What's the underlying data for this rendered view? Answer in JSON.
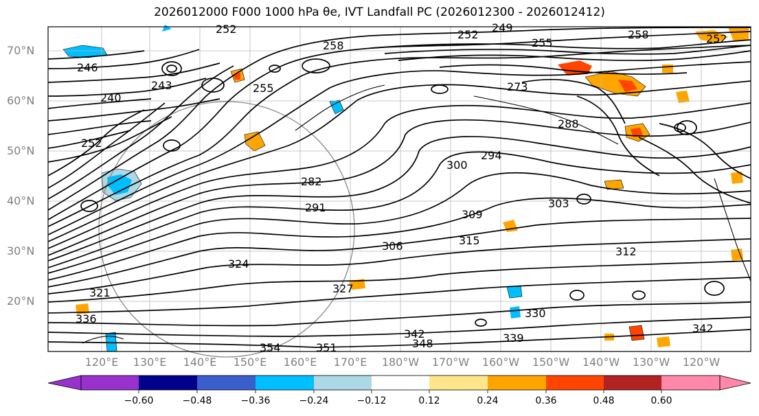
{
  "figure": {
    "title": "2026012000 F000 1000 hPa θe, IVT Landfall PC (2026012300 - 2026012412)"
  },
  "lat_labels": [
    "70°N",
    "60°N",
    "50°N",
    "40°N",
    "30°N",
    "20°N"
  ],
  "lon_labels": [
    "120°E",
    "130°E",
    "140°E",
    "150°E",
    "160°E",
    "170°E",
    "180°W",
    "170°W",
    "160°W",
    "150°W",
    "140°W",
    "130°W",
    "120°W"
  ],
  "contour_labels": [
    "252",
    "249",
    "255",
    "258",
    "252",
    "258",
    "246",
    "240",
    "243",
    "255",
    "252",
    "252",
    "273",
    "288",
    "294",
    "282",
    "291",
    "300",
    "303",
    "306",
    "309",
    "315",
    "312",
    "321",
    "324",
    "327",
    "330",
    "339",
    "342",
    "348",
    "351",
    "354",
    "336",
    "342"
  ],
  "colorbar": {
    "tick_labels": [
      "−0.60",
      "−0.48",
      "−0.36",
      "−0.24",
      "−0.12",
      "0.12",
      "0.24",
      "0.36",
      "0.48",
      "0.60"
    ],
    "colors": [
      "#9932cc",
      "#00008b",
      "#3a5fcd",
      "#00bfff",
      "#add8e6",
      "#ffffff",
      "#ffe68c",
      "#ffa500",
      "#ff4500",
      "#b22222",
      "#ff88aa"
    ]
  },
  "anomaly_colors": {
    "neg_light": "#add8e6",
    "neg": "#00bfff",
    "pos_light": "#ffe68c",
    "pos": "#ffa500",
    "pos_strong": "#ff4500"
  }
}
